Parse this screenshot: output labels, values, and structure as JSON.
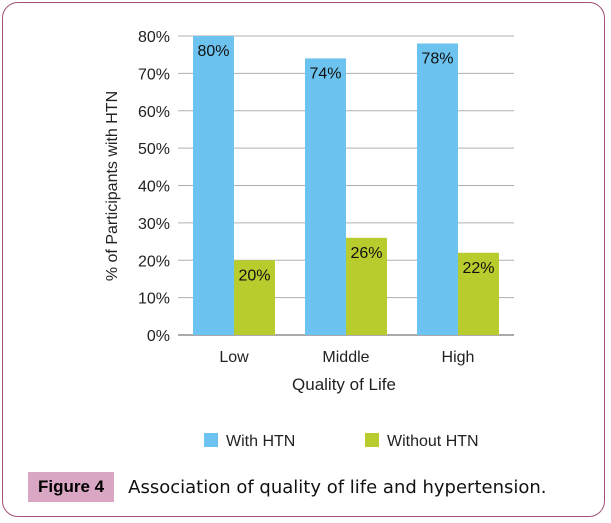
{
  "chart_data": {
    "type": "bar",
    "categories": [
      "Low",
      "Middle",
      "High"
    ],
    "series": [
      {
        "name": "With HTN",
        "values": [
          80,
          74,
          78
        ],
        "color": "#6cc3ef"
      },
      {
        "name": "Without HTN",
        "values": [
          20,
          26,
          22
        ],
        "color": "#b8cc2e"
      }
    ],
    "data_labels": [
      [
        "80%",
        "74%",
        "78%"
      ],
      [
        "20%",
        "26%",
        "22%"
      ]
    ],
    "xlabel": "Quality of Life",
    "ylabel": "% of Participants with HTN",
    "ylim": [
      0,
      80
    ],
    "yticks": [
      0,
      10,
      20,
      30,
      40,
      50,
      60,
      70,
      80
    ],
    "ytick_labels": [
      "0%",
      "10%",
      "20%",
      "30%",
      "40%",
      "50%",
      "60%",
      "70%",
      "80%"
    ],
    "grid": true,
    "legend_position": "bottom"
  },
  "caption": {
    "label": "Figure 4",
    "text": "Association of quality of life and hypertension."
  }
}
